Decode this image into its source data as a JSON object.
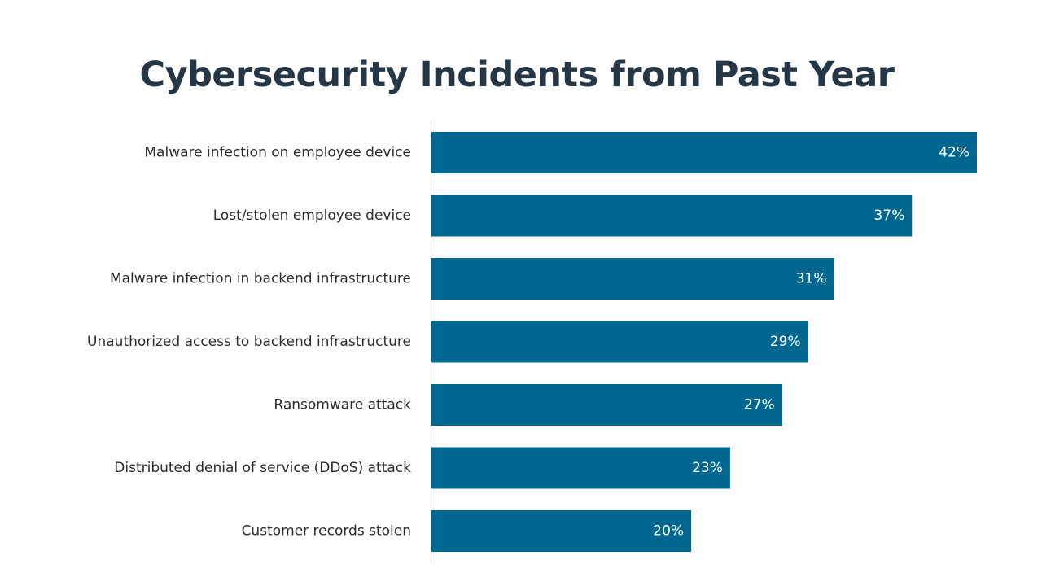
{
  "chart_data": {
    "type": "bar",
    "orientation": "horizontal",
    "title": "Cybersecurity Incidents from Past Year",
    "categories": [
      "Malware infection on employee device",
      "Lost/stolen employee device",
      "Malware infection in backend infrastructure",
      "Unauthorized access to backend infrastructure",
      "Ransomware attack",
      "Distributed denial of service (DDoS) attack",
      "Customer records stolen"
    ],
    "values": [
      42,
      37,
      31,
      29,
      27,
      23,
      20
    ],
    "value_labels": [
      "42%",
      "37%",
      "31%",
      "29%",
      "27%",
      "23%",
      "20%"
    ],
    "unit": "%",
    "xlim": [
      0,
      42
    ],
    "grid": false,
    "legend": "none",
    "bar_color": "#006890",
    "value_label_color": "#ffffff",
    "title_color": "#253646"
  }
}
